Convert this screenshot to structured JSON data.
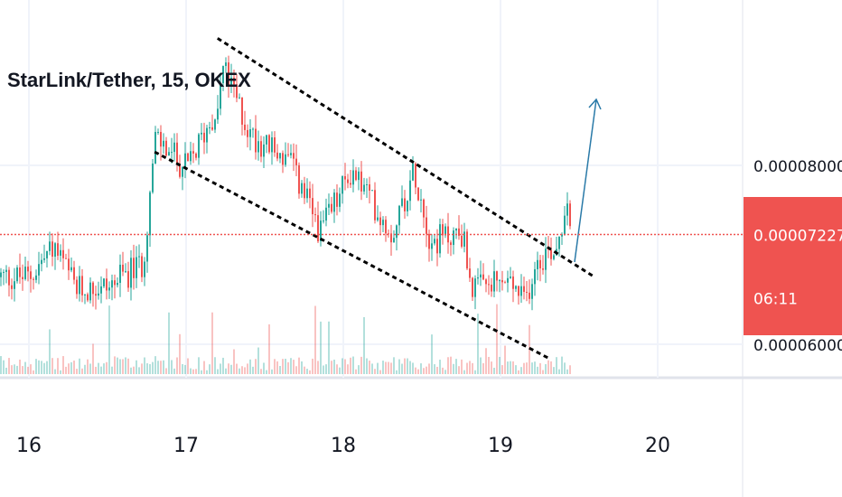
{
  "header": {
    "title": "StarLink/Tether, 15, OKEX"
  },
  "price_scale": {
    "ticks": [
      {
        "label": "0.000080000",
        "value": 8e-05
      },
      {
        "label": "0.000060000",
        "value": 6e-05
      }
    ]
  },
  "price_tag": {
    "price": "0.000072278",
    "countdown": "06:11",
    "color": "#ef5350"
  },
  "colors": {
    "up": "#26a69a",
    "down": "#ef5350",
    "arrow": "#2a7aa8",
    "channel": "#000000"
  },
  "chart_data": {
    "type": "candlestick",
    "symbol": "StarLink/Tether",
    "interval": "15",
    "exchange": "OKEX",
    "x_ticks": [
      "16",
      "17",
      "18",
      "19",
      "20"
    ],
    "ylim": [
      5.6e-05,
      9.6e-05
    ],
    "last_price": 7.2278e-05,
    "channel": {
      "upper": [
        [
          "17.2",
          9.42e-05
        ],
        [
          "19.6",
          6.75e-05
        ]
      ],
      "lower": [
        [
          "16.8",
          8.15e-05
        ],
        [
          "19.3",
          5.85e-05
        ]
      ]
    },
    "anchors": [
      {
        "t": "16.0",
        "price": 6.75e-05
      },
      {
        "t": "16.15",
        "price": 7.1e-05
      },
      {
        "t": "16.3",
        "price": 6.6e-05
      },
      {
        "t": "16.5",
        "price": 6.65e-05
      },
      {
        "t": "16.72",
        "price": 6.9e-05
      },
      {
        "t": "16.8",
        "price": 8.3e-05
      },
      {
        "t": "17.0",
        "price": 7.95e-05
      },
      {
        "t": "17.2",
        "price": 8.7e-05
      },
      {
        "t": "17.23",
        "price": 9.1e-05
      },
      {
        "t": "17.4",
        "price": 8.35e-05
      },
      {
        "t": "17.65",
        "price": 8.05e-05
      },
      {
        "t": "17.85",
        "price": 7.25e-05
      },
      {
        "t": "18.05",
        "price": 7.95e-05
      },
      {
        "t": "18.3",
        "price": 7.25e-05
      },
      {
        "t": "18.45",
        "price": 7.95e-05
      },
      {
        "t": "18.55",
        "price": 7.15e-05
      },
      {
        "t": "18.75",
        "price": 7.25e-05
      },
      {
        "t": "18.82",
        "price": 6.6e-05
      },
      {
        "t": "19.05",
        "price": 6.7e-05
      },
      {
        "t": "19.15",
        "price": 6.45e-05
      },
      {
        "t": "19.22",
        "price": 6.95e-05
      },
      {
        "t": "19.35",
        "price": 7.1e-05
      },
      {
        "t": "19.42",
        "price": 7.65e-05
      },
      {
        "t": "19.45",
        "price": 7.23e-05
      }
    ]
  }
}
